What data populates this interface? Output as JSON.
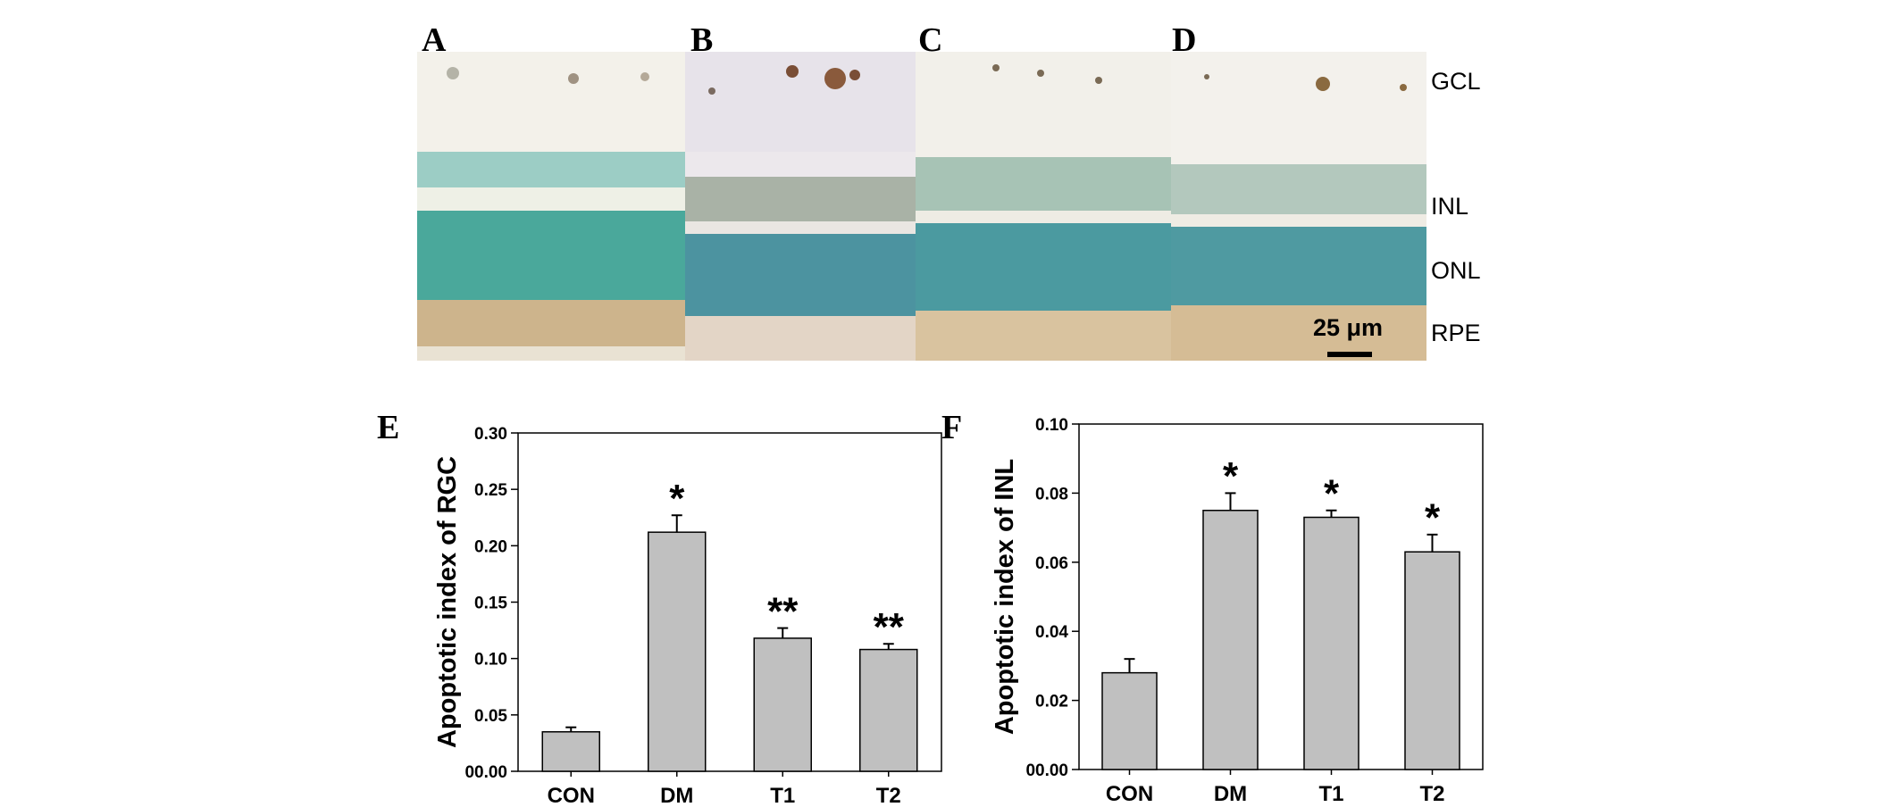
{
  "figure": {
    "panel_letters": [
      "A",
      "B",
      "C",
      "D",
      "E",
      "F"
    ],
    "layer_labels": [
      "GCL",
      "INL",
      "ONL",
      "RPE"
    ],
    "scale_bar": "25 μm"
  },
  "colors": {
    "bar_fill": "#c0c0c0",
    "bar_stroke": "#000000",
    "tissue_background": "#f4f1ea",
    "nuclei_teal": "#4aa59a",
    "rpe_tan": "#c7ad84",
    "apoptotic_brown": "#7a5a3a"
  },
  "chart_data": [
    {
      "type": "bar",
      "panel": "E",
      "categories": [
        "CON",
        "DM",
        "T1",
        "T2"
      ],
      "values": [
        0.035,
        0.212,
        0.118,
        0.108
      ],
      "errors": [
        0.004,
        0.015,
        0.009,
        0.005
      ],
      "significance": [
        "",
        "*",
        "**",
        "**"
      ],
      "ylabel": "Apoptotic index of RGC",
      "xlabel": "",
      "ylim": [
        0,
        0.3
      ],
      "yticks": [
        0,
        0.05,
        0.1,
        0.15,
        0.2,
        0.25,
        0.3
      ],
      "ytick_labels": [
        "00.00",
        "0.05",
        "0.10",
        "0.15",
        "0.20",
        "0.25",
        "0.30"
      ],
      "grid": false
    },
    {
      "type": "bar",
      "panel": "F",
      "categories": [
        "CON",
        "DM",
        "T1",
        "T2"
      ],
      "values": [
        0.028,
        0.075,
        0.073,
        0.063
      ],
      "errors": [
        0.004,
        0.005,
        0.002,
        0.005
      ],
      "significance": [
        "",
        "*",
        "*",
        "*"
      ],
      "ylabel": "Apoptotic index of INL",
      "xlabel": "",
      "ylim": [
        0,
        0.1
      ],
      "yticks": [
        0,
        0.02,
        0.04,
        0.06,
        0.08,
        0.1
      ],
      "ytick_labels": [
        "00.00",
        "0.02",
        "0.04",
        "0.06",
        "0.08",
        "0.10"
      ],
      "grid": false
    }
  ]
}
